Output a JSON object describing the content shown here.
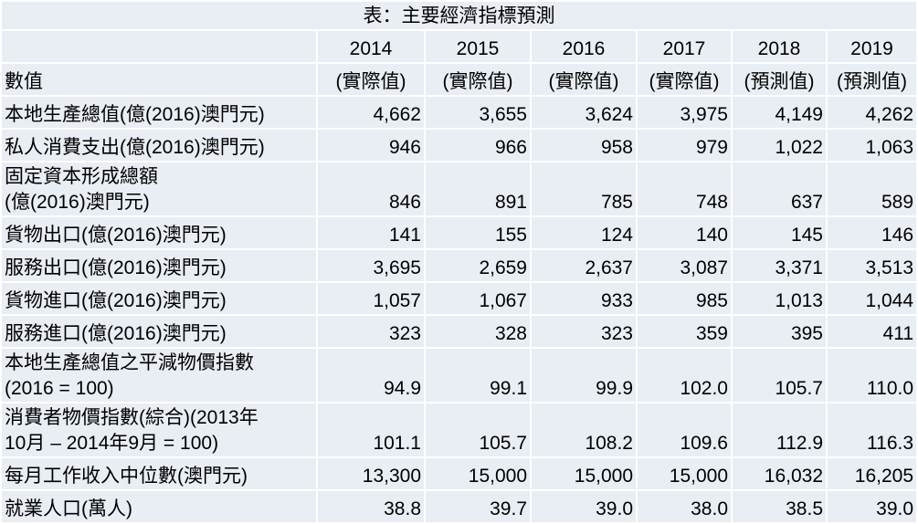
{
  "title": "表：主要經濟指標預測",
  "years": [
    "2014",
    "2015",
    "2016",
    "2017",
    "2018",
    "2019"
  ],
  "types": [
    "(實際值)",
    "(實際值)",
    "(實際值)",
    "(實際值)",
    "(預測值)",
    "(預測值)"
  ],
  "corner_label": "數值",
  "rows": [
    {
      "label": [
        "本地生產總值(億(2016)澳門元)"
      ],
      "values": [
        "4,662",
        "3,655",
        "3,624",
        "3,975",
        "4,149",
        "4,262"
      ]
    },
    {
      "label": [
        "私人消費支出(億(2016)澳門元)"
      ],
      "values": [
        "946",
        "966",
        "958",
        "979",
        "1,022",
        "1,063"
      ]
    },
    {
      "label": [
        "固定資本形成總額",
        "(億(2016)澳門元)"
      ],
      "values": [
        "846",
        "891",
        "785",
        "748",
        "637",
        "589"
      ]
    },
    {
      "label": [
        "貨物出口(億(2016)澳門元)"
      ],
      "values": [
        "141",
        "155",
        "124",
        "140",
        "145",
        "146"
      ]
    },
    {
      "label": [
        "服務出口(億(2016)澳門元)"
      ],
      "values": [
        "3,695",
        "2,659",
        "2,637",
        "3,087",
        "3,371",
        "3,513"
      ]
    },
    {
      "label": [
        "貨物進口(億(2016)澳門元)"
      ],
      "values": [
        "1,057",
        "1,067",
        "933",
        "985",
        "1,013",
        "1,044"
      ]
    },
    {
      "label": [
        "服務進口(億(2016)澳門元)"
      ],
      "values": [
        "323",
        "328",
        "323",
        "359",
        "395",
        "411"
      ]
    },
    {
      "label": [
        "本地生產總值之平減物價指數",
        "(2016 = 100)"
      ],
      "values": [
        "94.9",
        "99.1",
        "99.9",
        "102.0",
        "105.7",
        "110.0"
      ]
    },
    {
      "label": [
        "消費者物價指數(綜合)(2013年",
        "10月 – 2014年9月 = 100)"
      ],
      "values": [
        "101.1",
        "105.7",
        "108.2",
        "109.6",
        "112.9",
        "116.3"
      ]
    },
    {
      "label": [
        "每月工作收入中位數(澳門元)"
      ],
      "values": [
        "13,300",
        "15,000",
        "15,000",
        "15,000",
        "16,032",
        "16,205"
      ]
    },
    {
      "label": [
        "就業人口(萬人)"
      ],
      "values": [
        "38.8",
        "39.7",
        "39.0",
        "38.0",
        "38.5",
        "39.0"
      ]
    }
  ]
}
